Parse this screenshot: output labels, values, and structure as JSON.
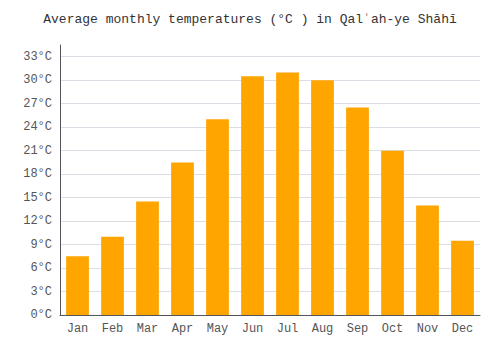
{
  "chart_data": {
    "type": "bar",
    "title": "Average monthly temperatures (°C ) in Qalʿah-ye Shāhī",
    "categories": [
      "Jan",
      "Feb",
      "Mar",
      "Apr",
      "May",
      "Jun",
      "Jul",
      "Aug",
      "Sep",
      "Oct",
      "Nov",
      "Dec"
    ],
    "values": [
      7.5,
      10.0,
      14.5,
      19.5,
      25.0,
      30.5,
      31.0,
      30.0,
      26.5,
      21.0,
      14.0,
      9.5
    ],
    "color": "#FFA500",
    "ylim": [
      0,
      34.5
    ],
    "yticks": [
      {
        "value": 0,
        "label": "0°C"
      },
      {
        "value": 3,
        "label": "3°C"
      },
      {
        "value": 6,
        "label": "6°C"
      },
      {
        "value": 9,
        "label": "9°C"
      },
      {
        "value": 12,
        "label": "12°C"
      },
      {
        "value": 15,
        "label": "15°C"
      },
      {
        "value": 18,
        "label": "18°C"
      },
      {
        "value": 21,
        "label": "21°C"
      },
      {
        "value": 24,
        "label": "24°C"
      },
      {
        "value": 27,
        "label": "27°C"
      },
      {
        "value": 30,
        "label": "30°C"
      },
      {
        "value": 33,
        "label": "33°C"
      }
    ],
    "grid": true
  }
}
